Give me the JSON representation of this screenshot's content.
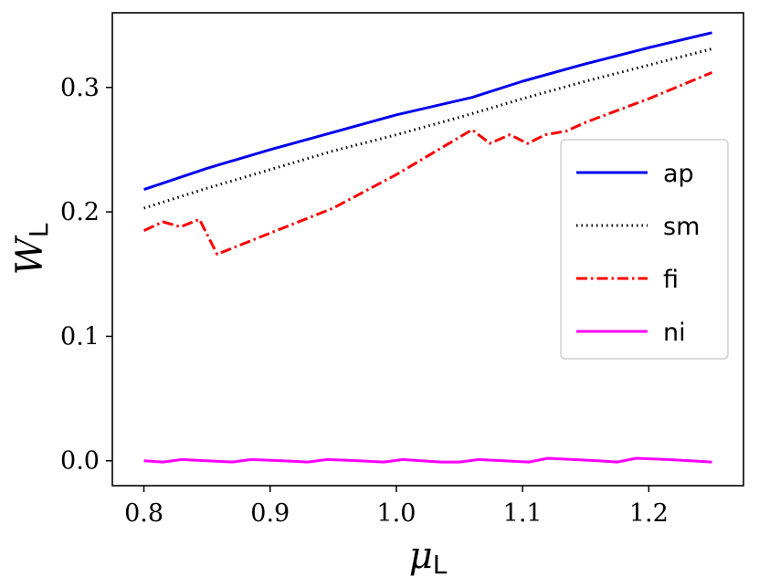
{
  "chart_data": {
    "type": "line",
    "xlabel": "μ",
    "xlabel_sub": "L",
    "ylabel": "W",
    "ylabel_sub": "L",
    "xlim": [
      0.775,
      1.275
    ],
    "ylim": [
      -0.02,
      0.36
    ],
    "xticks": [
      "0.8",
      "0.9",
      "1.0",
      "1.1",
      "1.2"
    ],
    "yticks": [
      "0.0",
      "0.1",
      "0.2",
      "0.3"
    ],
    "grid": false,
    "legend_position": "center-right",
    "series": [
      {
        "name": "ap",
        "color": "#0000ee",
        "dash": "solid",
        "x": [
          0.8,
          0.85,
          0.9,
          0.95,
          1.0,
          1.06,
          1.1,
          1.15,
          1.2,
          1.25
        ],
        "y": [
          0.218,
          0.235,
          0.25,
          0.264,
          0.278,
          0.292,
          0.305,
          0.319,
          0.332,
          0.344
        ]
      },
      {
        "name": "sm",
        "color": "#000000",
        "dash": "dotted",
        "x": [
          0.8,
          0.85,
          0.9,
          0.95,
          1.0,
          1.05,
          1.1,
          1.15,
          1.2,
          1.25
        ],
        "y": [
          0.203,
          0.219,
          0.234,
          0.249,
          0.262,
          0.276,
          0.291,
          0.305,
          0.318,
          0.331
        ]
      },
      {
        "name": "fi",
        "color": "#ff0000",
        "dash": "dashdot",
        "x": [
          0.8,
          0.815,
          0.829,
          0.844,
          0.858,
          0.9,
          0.95,
          1.0,
          1.06,
          1.074,
          1.09,
          1.104,
          1.118,
          1.135,
          1.15,
          1.2,
          1.25
        ],
        "y": [
          0.185,
          0.192,
          0.188,
          0.194,
          0.166,
          0.183,
          0.203,
          0.23,
          0.266,
          0.255,
          0.262,
          0.255,
          0.262,
          0.265,
          0.272,
          0.291,
          0.312
        ]
      },
      {
        "name": "ni",
        "color": "#ff00ff",
        "dash": "solid",
        "x": [
          0.8,
          0.815,
          0.83,
          0.85,
          0.87,
          0.885,
          0.91,
          0.93,
          0.945,
          0.97,
          0.99,
          1.005,
          1.02,
          1.035,
          1.05,
          1.065,
          1.085,
          1.105,
          1.12,
          1.14,
          1.16,
          1.175,
          1.19,
          1.215,
          1.25
        ],
        "y": [
          0.0,
          -0.001,
          0.001,
          0.0,
          -0.001,
          0.001,
          0.0,
          -0.001,
          0.001,
          0.0,
          -0.001,
          0.001,
          0.0,
          -0.001,
          -0.001,
          0.001,
          0.0,
          -0.001,
          0.002,
          0.001,
          0.0,
          -0.001,
          0.002,
          0.001,
          -0.001
        ]
      }
    ]
  }
}
